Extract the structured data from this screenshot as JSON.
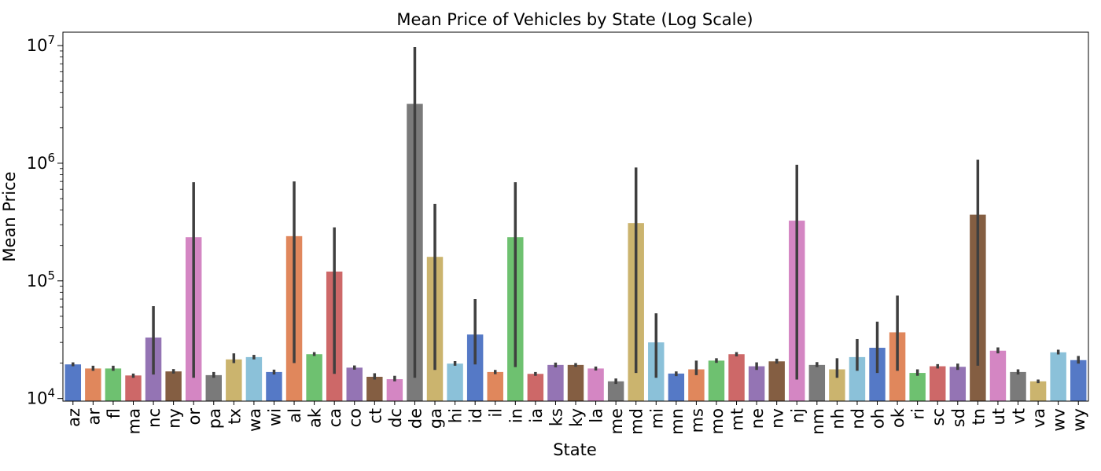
{
  "chart_data": {
    "type": "bar",
    "title": "Mean Price of Vehicles by State (Log Scale)",
    "xlabel": "State",
    "ylabel": "Mean Price",
    "yscale": "log",
    "ylim": [
      9500,
      13000000
    ],
    "yticks": [
      {
        "value": 10000,
        "base": "10",
        "exp": "4"
      },
      {
        "value": 100000,
        "base": "10",
        "exp": "5"
      },
      {
        "value": 1000000,
        "base": "10",
        "exp": "6"
      },
      {
        "value": 10000000,
        "base": "10",
        "exp": "7"
      }
    ],
    "grid": false,
    "error_bar_color": "#3f3f3f",
    "categories": [
      "az",
      "ar",
      "fl",
      "ma",
      "nc",
      "ny",
      "or",
      "pa",
      "tx",
      "wa",
      "wi",
      "al",
      "ak",
      "ca",
      "co",
      "ct",
      "dc",
      "de",
      "ga",
      "hi",
      "id",
      "il",
      "in",
      "ia",
      "ks",
      "ky",
      "la",
      "me",
      "md",
      "mi",
      "mn",
      "ms",
      "mo",
      "mt",
      "ne",
      "nv",
      "nj",
      "nm",
      "nh",
      "nd",
      "oh",
      "ok",
      "ri",
      "sc",
      "sd",
      "tn",
      "ut",
      "vt",
      "va",
      "wv",
      "wy"
    ],
    "values": [
      19500,
      18000,
      18000,
      15700,
      33000,
      17000,
      235000,
      15800,
      21500,
      22500,
      16800,
      240000,
      23800,
      120000,
      18300,
      15300,
      14600,
      3200000,
      160000,
      19800,
      35000,
      16800,
      235000,
      16200,
      19300,
      19300,
      18000,
      14000,
      310000,
      30000,
      16300,
      17700,
      21000,
      23800,
      18800,
      20700,
      325000,
      19300,
      17700,
      22500,
      27000,
      36500,
      16500,
      18800,
      18600,
      365000,
      25500,
      16800,
      14000,
      24700,
      21200
    ],
    "error_low": [
      18800,
      17200,
      17200,
      15000,
      16000,
      16300,
      15000,
      15000,
      20000,
      21500,
      16000,
      20000,
      23000,
      16200,
      17600,
      14500,
      14000,
      15000,
      17500,
      19000,
      19500,
      16100,
      18500,
      15600,
      18400,
      18600,
      17300,
      13300,
      16500,
      15000,
      15500,
      15800,
      20100,
      22800,
      17500,
      19800,
      14500,
      18500,
      15000,
      17200,
      16500,
      17200,
      15600,
      18000,
      17500,
      19000,
      24200,
      16000,
      13500,
      23700,
      19800
    ],
    "error_high": [
      20300,
      19000,
      19000,
      16300,
      61000,
      17800,
      690000,
      16800,
      24200,
      23500,
      17600,
      700000,
      24800,
      285000,
      19100,
      16400,
      15600,
      9700000,
      450000,
      20800,
      70000,
      17500,
      690000,
      16800,
      20200,
      20000,
      18700,
      14800,
      920000,
      53000,
      17000,
      21000,
      22000,
      24800,
      20300,
      21800,
      970000,
      20400,
      22000,
      32000,
      45000,
      75000,
      17700,
      19600,
      19800,
      1070000,
      27200,
      17700,
      14500,
      26000,
      23000
    ],
    "colors": [
      "#5579c6",
      "#e0875c",
      "#6ec170",
      "#cd6868",
      "#9474b4",
      "#845e42",
      "#d486c3",
      "#7a7a7a",
      "#cbb46e",
      "#8bc1d9"
    ]
  }
}
